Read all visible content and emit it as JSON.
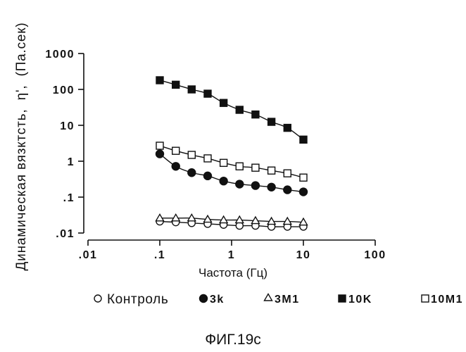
{
  "colors": {
    "ink": "#111111",
    "background": "#ffffff"
  },
  "caption": "ФИГ.19c",
  "chart_data": {
    "type": "line",
    "xscale": "log",
    "yscale": "log",
    "xlabel": "Частота (Гц)",
    "ylabel": "Динамическая вязктсть,  η',  (Па.сек)",
    "xlim": [
      0.01,
      100
    ],
    "ylim": [
      0.01,
      1000
    ],
    "xticks": [
      {
        "value": 0.01,
        "label": ".01"
      },
      {
        "value": 0.1,
        "label": ".1"
      },
      {
        "value": 1,
        "label": "1"
      },
      {
        "value": 10,
        "label": "10"
      },
      {
        "value": 100,
        "label": "100"
      }
    ],
    "yticks": [
      {
        "value": 1000,
        "label": "1000"
      },
      {
        "value": 100,
        "label": "100"
      },
      {
        "value": 10,
        "label": "10"
      },
      {
        "value": 1,
        "label": "1"
      },
      {
        "value": 0.1,
        "label": ".1"
      },
      {
        "value": 0.01,
        "label": ".01"
      }
    ],
    "grid": false,
    "legend_position": "bottom",
    "x": [
      0.1,
      0.167,
      0.278,
      0.464,
      0.774,
      1.29,
      2.15,
      3.59,
      5.99,
      10
    ],
    "series": [
      {
        "name": "Контроль",
        "marker": "open-circle",
        "values": [
          0.021,
          0.02,
          0.019,
          0.018,
          0.017,
          0.016,
          0.016,
          0.015,
          0.015,
          0.015
        ]
      },
      {
        "name": "3k",
        "marker": "filled-circle",
        "values": [
          1.6,
          0.72,
          0.48,
          0.39,
          0.28,
          0.23,
          0.21,
          0.19,
          0.16,
          0.14
        ]
      },
      {
        "name": "3M1",
        "marker": "open-triangle",
        "values": [
          0.026,
          0.026,
          0.026,
          0.024,
          0.023,
          0.023,
          0.022,
          0.021,
          0.021,
          0.02
        ]
      },
      {
        "name": "10K",
        "marker": "filled-square",
        "values": [
          180,
          135,
          100,
          76,
          42,
          27,
          20,
          12.5,
          8.5,
          4
        ]
      },
      {
        "name": "10M1",
        "marker": "open-square",
        "values": [
          2.7,
          1.95,
          1.5,
          1.2,
          0.9,
          0.72,
          0.66,
          0.55,
          0.46,
          0.35
        ]
      }
    ]
  }
}
